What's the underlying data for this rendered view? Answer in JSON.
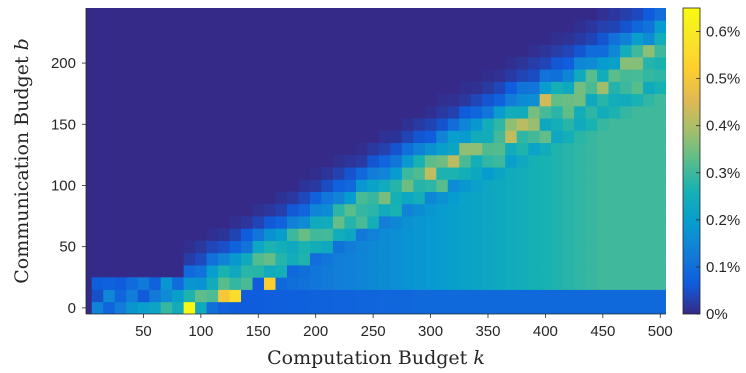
{
  "chart_data": {
    "type": "heatmap",
    "xlabel": "Computation Budget k",
    "ylabel": "Communication Budget b",
    "x_ticks": [
      50,
      100,
      150,
      200,
      250,
      300,
      350,
      400,
      450,
      500
    ],
    "y_ticks": [
      0,
      50,
      100,
      150,
      200
    ],
    "xlim": [
      0,
      505
    ],
    "ylim": [
      -5,
      245
    ],
    "x_bin_width": 10,
    "y_bin_width": 10,
    "colorbar": {
      "ticks": [
        "0%",
        "0.1%",
        "0.2%",
        "0.3%",
        "0.4%",
        "0.5%",
        "0.6%"
      ],
      "tick_values": [
        0,
        0.1,
        0.2,
        0.3,
        0.4,
        0.5,
        0.6
      ],
      "range": [
        0,
        0.65
      ],
      "colormap": "parula",
      "position": "right"
    },
    "description_units": "cell values in percent",
    "grid": false,
    "peak_cells": [
      {
        "k": 90,
        "b": 0,
        "value": 0.64
      },
      {
        "k": 130,
        "b": 10,
        "value": 0.56
      },
      {
        "k": 120,
        "b": 10,
        "value": 0.5
      },
      {
        "k": 160,
        "b": 20,
        "value": 0.52
      },
      {
        "k": 400,
        "b": 170,
        "value": 0.44
      }
    ]
  }
}
